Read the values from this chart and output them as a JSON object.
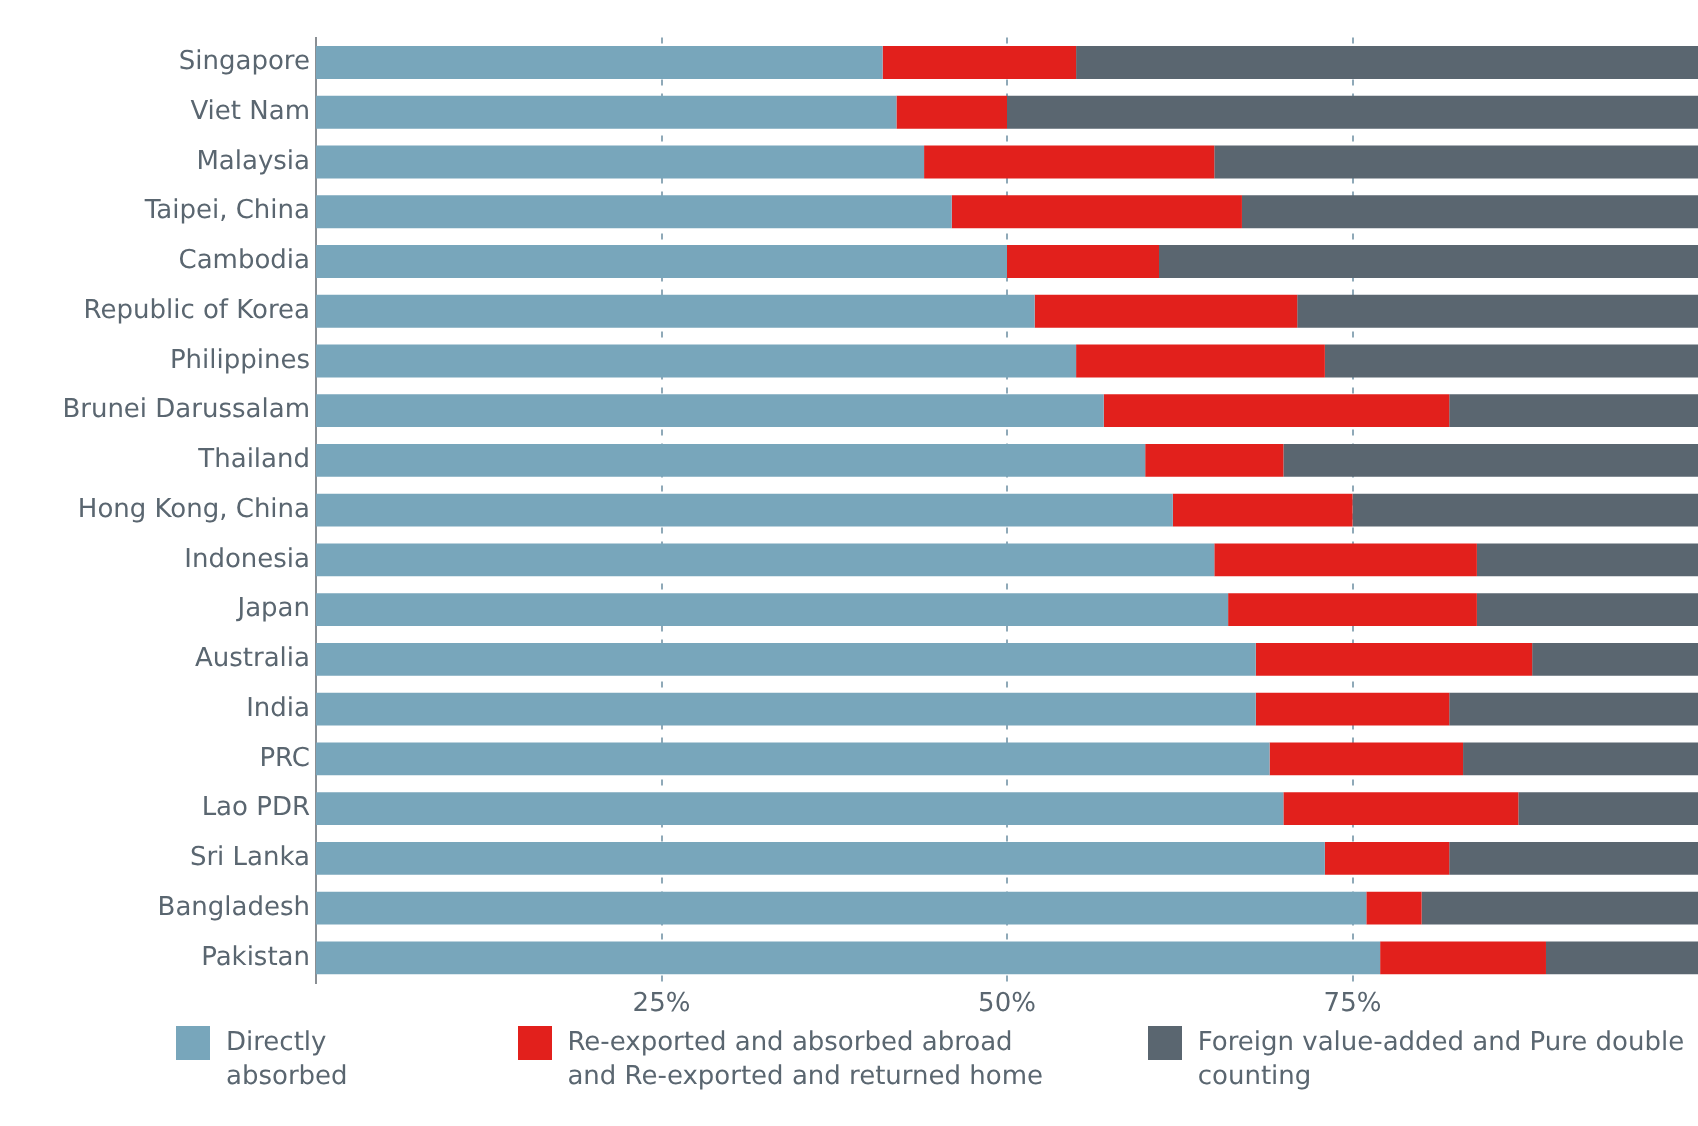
{
  "chart_data": {
    "type": "bar",
    "orientation": "horizontal",
    "stacked": true,
    "categories": [
      "Singapore",
      "Viet Nam",
      "Malaysia",
      "Taipei, China",
      "Cambodia",
      "Republic of Korea",
      "Philippines",
      "Brunei Darussalam",
      "Thailand",
      "Hong Kong, China",
      "Indonesia",
      "Japan",
      "Australia",
      "India",
      "PRC",
      "Lao PDR",
      "Sri Lanka",
      "Bangladesh",
      "Pakistan"
    ],
    "series": [
      {
        "name": "Directly absorbed",
        "color": "#78a6bb",
        "values": [
          41,
          42,
          44,
          46,
          50,
          52,
          55,
          57,
          60,
          62,
          65,
          66,
          68,
          68,
          69,
          70,
          73,
          76,
          77
        ]
      },
      {
        "name": "Re-exported and absorbed abroad and Re-exported and returned home",
        "color": "#e2201c",
        "values": [
          14,
          8,
          21,
          21,
          11,
          19,
          18,
          25,
          10,
          13,
          19,
          18,
          20,
          14,
          14,
          17,
          9,
          4,
          12
        ]
      },
      {
        "name": "Foreign value-added and Pure double counting",
        "color": "#5a6670",
        "values": [
          45,
          50,
          35,
          33,
          39,
          29,
          27,
          18,
          30,
          25,
          16,
          16,
          12,
          18,
          17,
          13,
          18,
          20,
          11
        ]
      }
    ],
    "xlim": [
      0,
      100
    ],
    "xticks": [
      {
        "value": 25,
        "label": "25%"
      },
      {
        "value": 50,
        "label": "50%"
      },
      {
        "value": 75,
        "label": "75%"
      }
    ],
    "grid": "x",
    "legend": "bottom"
  }
}
